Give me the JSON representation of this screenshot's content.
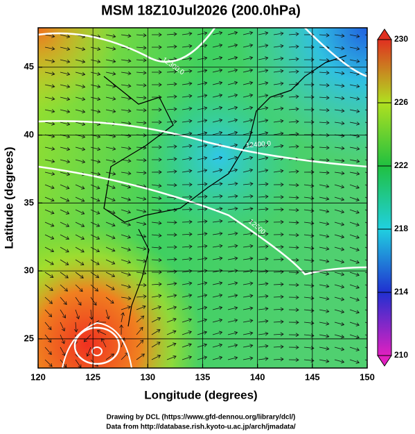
{
  "chart_data": {
    "type": "field-map",
    "title": "MSM 18Z10Jul2026 (200.0hPa)",
    "xlabel": "Longitude (degrees)",
    "ylabel": "Latitude  (degrees)",
    "xlim": [
      120,
      150
    ],
    "ylim": [
      22.85,
      47.9
    ],
    "xticks": [
      120,
      125,
      130,
      135,
      140,
      145,
      150
    ],
    "yticks": [
      25,
      30,
      35,
      40,
      45
    ],
    "grid": true,
    "colorbar": {
      "range": [
        210,
        230
      ],
      "ticks": [
        210,
        214,
        218,
        222,
        226,
        230
      ],
      "colors": [
        "#e020c0",
        "#2030d0",
        "#20d0e0",
        "#20c040",
        "#b0e020",
        "#e03020"
      ]
    },
    "annotations": [
      "12300.0",
      "12400.0",
      "12500."
    ],
    "footer": [
      "Drawing by DCL (https://www.gfd-dennou.org/library/dcl/)",
      "Data from http://database.rish.kyoto-u.ac.jp/arch/jmadata/"
    ]
  }
}
